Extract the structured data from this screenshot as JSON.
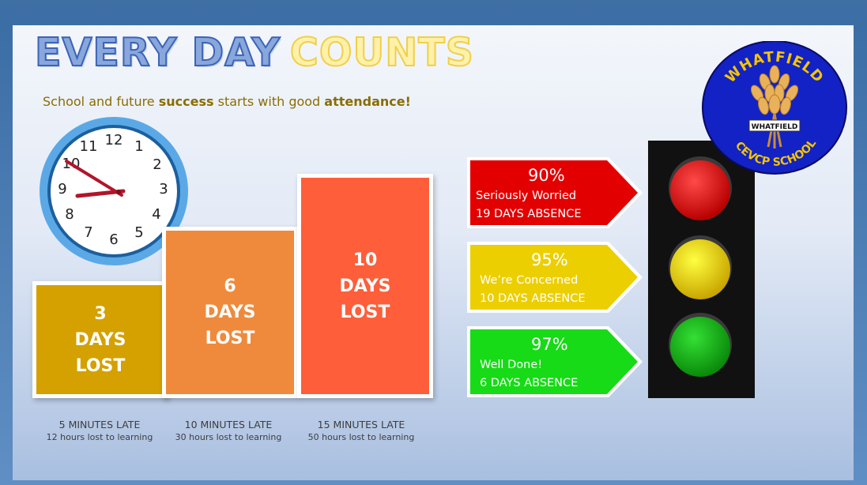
{
  "title": {
    "part1": "EVERY DAY",
    "part2": "COUNTS"
  },
  "subtitle": {
    "pre": "School and future ",
    "bold1": "success",
    "mid": " starts with good ",
    "bold2": "attendance!"
  },
  "clock": {
    "numbers": [
      "12",
      "1",
      "2",
      "3",
      "4",
      "5",
      "6",
      "7",
      "8",
      "9",
      "10",
      "11"
    ]
  },
  "bars": [
    {
      "num": "3",
      "days": "DAYS",
      "lost": "LOST",
      "late": "5 MINUTES LATE",
      "hours": "12 hours lost to learning",
      "color": "#d4a100"
    },
    {
      "num": "6",
      "days": "DAYS",
      "lost": "LOST",
      "late": "10 MINUTES LATE",
      "hours": "30 hours lost to learning",
      "color": "#ef8a3c"
    },
    {
      "num": "10",
      "days": "DAYS",
      "lost": "LOST",
      "late": "15 MINUTES LATE",
      "hours": "50 hours lost to learning",
      "color": "#fe5e3a"
    }
  ],
  "arrows": [
    {
      "pct": "90%",
      "label": "Seriously Worried",
      "absence": "19 DAYS ABSENCE",
      "color": "#e30000"
    },
    {
      "pct": "95%",
      "label": "We’re Concerned",
      "absence": "10 DAYS ABSENCE",
      "color": "#eccf00"
    },
    {
      "pct": "97%",
      "label": "Well Done!",
      "absence": "6 DAYS ABSENCE",
      "color": "#16db16"
    }
  ],
  "logo": {
    "top": "WHATFIELD",
    "banner": "WHATFIELD",
    "bottom": "CEVCP SCHOOL"
  }
}
